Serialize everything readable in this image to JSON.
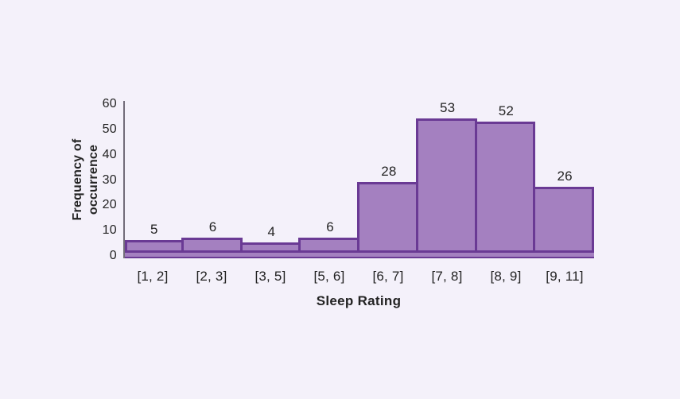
{
  "chart_data": {
    "type": "bar",
    "subtype": "histogram",
    "categories": [
      "[1, 2]",
      "[2, 3]",
      "[3, 5]",
      "[5, 6]",
      "[6, 7]",
      "[7, 8]",
      "[8, 9]",
      "[9, 11]"
    ],
    "values": [
      5,
      6,
      4,
      6,
      28,
      53,
      52,
      26
    ],
    "xlabel": "Sleep Rating",
    "ylabel": "Frequency of occurrence",
    "ylim": [
      0,
      60
    ],
    "yticks": [
      0,
      10,
      20,
      30,
      40,
      50,
      60
    ],
    "grid": false,
    "legend_position": "none",
    "colors": {
      "background": "#f4f1fa",
      "bar_fill": "#a480c0",
      "bar_border": "#6a3a94",
      "axis_line": "#726c79",
      "text": "#232323"
    }
  }
}
